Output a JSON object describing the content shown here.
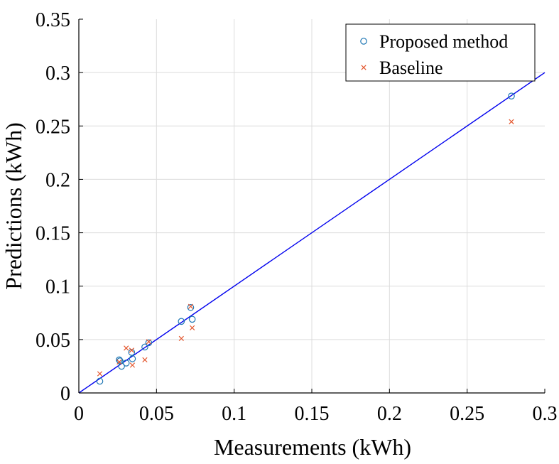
{
  "chart_data": {
    "type": "scatter",
    "xlabel": "Measurements (kWh)",
    "ylabel": "Predictions (kWh)",
    "xlim": [
      0,
      0.3
    ],
    "ylim": [
      0,
      0.35
    ],
    "x_ticks": [
      0,
      0.05,
      0.1,
      0.15,
      0.2,
      0.25,
      0.3
    ],
    "x_tick_labels": [
      "0",
      "0.05",
      "0.1",
      "0.15",
      "0.2",
      "0.25",
      "0.3"
    ],
    "y_ticks": [
      0,
      0.05,
      0.1,
      0.15,
      0.2,
      0.25,
      0.3,
      0.35
    ],
    "y_tick_labels": [
      "0",
      "0.05",
      "0.1",
      "0.15",
      "0.2",
      "0.25",
      "0.3",
      "0.35"
    ],
    "grid": true,
    "legend_position": "top-right",
    "reference_line": {
      "from": [
        0,
        0
      ],
      "to": [
        0.3,
        0.3
      ],
      "color": "#0000ee"
    },
    "series": [
      {
        "name": "Proposed method",
        "marker": "circle",
        "color": "#1f77b4",
        "points": [
          [
            0.0135,
            0.011
          ],
          [
            0.026,
            0.031
          ],
          [
            0.0265,
            0.03
          ],
          [
            0.0275,
            0.025
          ],
          [
            0.0305,
            0.028
          ],
          [
            0.034,
            0.038
          ],
          [
            0.0345,
            0.032
          ],
          [
            0.0425,
            0.043
          ],
          [
            0.045,
            0.047
          ],
          [
            0.066,
            0.067
          ],
          [
            0.072,
            0.08
          ],
          [
            0.073,
            0.069
          ],
          [
            0.2785,
            0.278
          ]
        ]
      },
      {
        "name": "Baseline",
        "marker": "x",
        "color": "#e4572e",
        "points": [
          [
            0.0135,
            0.018
          ],
          [
            0.026,
            0.029
          ],
          [
            0.0305,
            0.042
          ],
          [
            0.034,
            0.04
          ],
          [
            0.0345,
            0.026
          ],
          [
            0.0425,
            0.031
          ],
          [
            0.045,
            0.048
          ],
          [
            0.066,
            0.051
          ],
          [
            0.072,
            0.081
          ],
          [
            0.073,
            0.061
          ],
          [
            0.2785,
            0.254
          ]
        ]
      }
    ]
  }
}
